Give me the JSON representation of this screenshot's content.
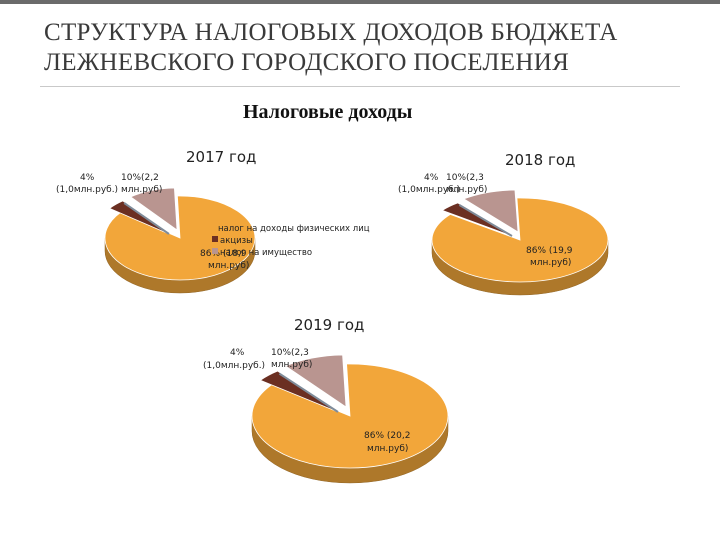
{
  "title": {
    "line1": "СТРУКТУРА НАЛОГОВЫХ ДОХОДОВ БЮДЖЕТА",
    "line2": "ЛЕЖНЕВСКОГО ГОРОДСКОГО ПОСЕЛЕНИЯ"
  },
  "subtitle": "Налоговые доходы",
  "colors": {
    "ndfl": "#F2A63A",
    "excise": "#6B2F22",
    "property": "#B99590",
    "sliver": "#7F8C9A"
  },
  "chart_data": [
    {
      "type": "pie",
      "title": "2017 год",
      "series": [
        {
          "name": "налог на доходы физических лиц",
          "percent": 86,
          "label_line1": "86% (18,9",
          "label_line2": "млн.руб)"
        },
        {
          "name": "акцизы",
          "percent": 4,
          "label_line1": "4%",
          "label_line2": "(1,0млн.руб.)"
        },
        {
          "name": "налог на имущество",
          "percent": 10,
          "label_line1": "10%(2,2",
          "label_line2": "млн.руб)"
        }
      ],
      "legend": [
        "налог на доходы физических лиц",
        "акцизы",
        "налог на имущество"
      ]
    },
    {
      "type": "pie",
      "title": "2018 год",
      "series": [
        {
          "name": "налог на доходы физических лиц",
          "percent": 86,
          "label_line1": "86% (19,9",
          "label_line2": "млн.руб)"
        },
        {
          "name": "акцизы",
          "percent": 4,
          "label_line1": "4%",
          "label_line2": "(1,0млн.руб.)"
        },
        {
          "name": "налог на имущество",
          "percent": 10,
          "label_line1": "10%(2,3",
          "label_line2": "млн.руб)"
        }
      ]
    },
    {
      "type": "pie",
      "title": "2019 год",
      "series": [
        {
          "name": "налог на доходы физических лиц",
          "percent": 86,
          "label_line1": "86% (20,2",
          "label_line2": "млн.руб)"
        },
        {
          "name": "акцизы",
          "percent": 4,
          "label_line1": "4%",
          "label_line2": "(1,0млн.руб.)"
        },
        {
          "name": "налог на имущество",
          "percent": 10,
          "label_line1": "10%(2,3",
          "label_line2": "млн.руб)"
        }
      ]
    }
  ]
}
